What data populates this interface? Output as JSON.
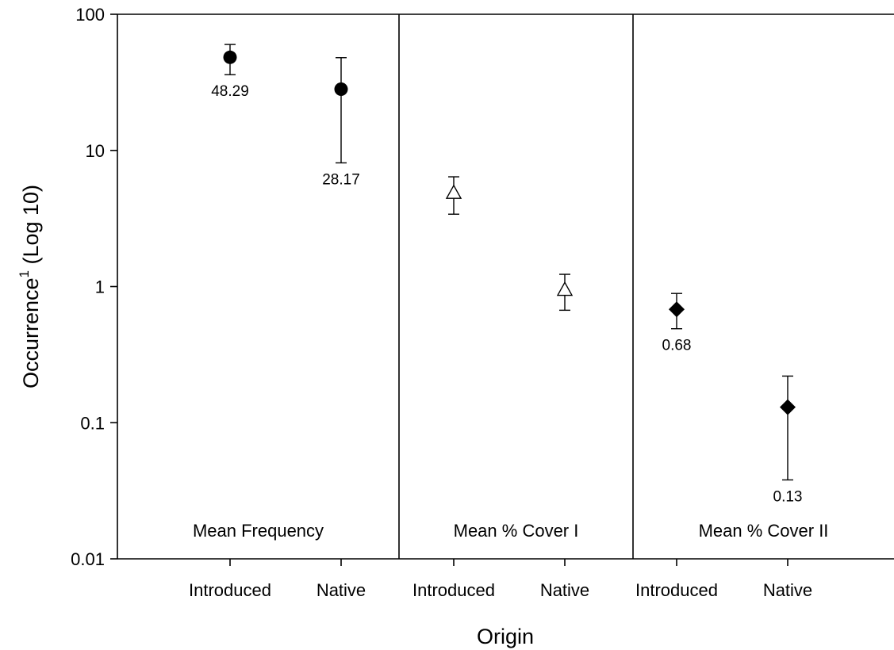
{
  "chart_data": {
    "type": "scatter",
    "ylabel": "Occurrence",
    "ylabel_superscript": "1",
    "ylabel_suffix": " (Log 10)",
    "xlabel": "Origin",
    "yscale": "log",
    "ylim": [
      0.01,
      100
    ],
    "yticks": [
      "0.01",
      "0.1",
      "1",
      "10",
      "100"
    ],
    "panels": [
      {
        "label": "Mean Frequency",
        "marker": "circle-filled",
        "categories": [
          "Introduced",
          "Native"
        ],
        "points": [
          {
            "value": 48.29,
            "lower": 36,
            "upper": 60,
            "label": "48.29"
          },
          {
            "value": 28.17,
            "lower": 8.1,
            "upper": 48,
            "label": "28.17"
          }
        ]
      },
      {
        "label": "Mean % Cover I",
        "marker": "triangle-open",
        "categories": [
          "Introduced",
          "Native"
        ],
        "points": [
          {
            "value": 4.9,
            "lower": 3.4,
            "upper": 6.4,
            "label": ""
          },
          {
            "value": 0.95,
            "lower": 0.67,
            "upper": 1.23,
            "label": ""
          }
        ]
      },
      {
        "label": "Mean % Cover II",
        "marker": "diamond-filled",
        "categories": [
          "Introduced",
          "Native"
        ],
        "points": [
          {
            "value": 0.68,
            "lower": 0.49,
            "upper": 0.89,
            "label": "0.68"
          },
          {
            "value": 0.13,
            "lower": 0.038,
            "upper": 0.22,
            "label": "0.13"
          }
        ]
      }
    ]
  }
}
